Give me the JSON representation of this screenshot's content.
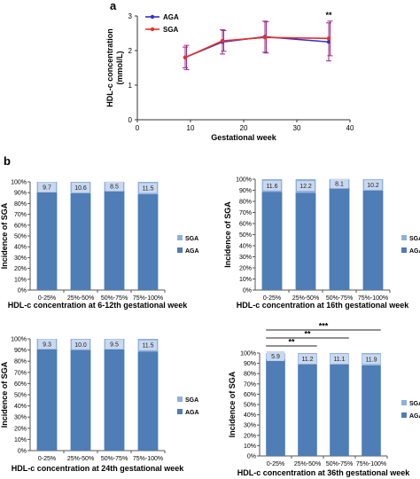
{
  "panel_labels": {
    "a": "a",
    "b": "b"
  },
  "colors": {
    "aga_line": "#3232c8",
    "sga_line": "#e8302a",
    "errbar": "#9a2a8c",
    "aga_bar": "#4f7db5",
    "sga_bar": "#8fb0dc",
    "label_box": "#c8d8ee"
  },
  "chart_data": [
    {
      "id": "a",
      "type": "line",
      "xlabel": "Gestational  week",
      "ylabel": "HDL-c concentration (mmol/L)",
      "ylabel_lines": [
        "HDL-c concentration",
        "(mmol/L)"
      ],
      "xlim": [
        0,
        40
      ],
      "ylim": [
        0,
        3
      ],
      "xticks": [
        0,
        10,
        20,
        30,
        40
      ],
      "yticks": [
        0,
        1,
        2,
        3
      ],
      "legend_position": "top-left",
      "series": [
        {
          "name": "AGA",
          "color": "#3232c8",
          "x": [
            9,
            16,
            24,
            36
          ],
          "y": [
            1.8,
            2.25,
            2.4,
            2.25
          ],
          "err": [
            0.3,
            0.35,
            0.45,
            0.55
          ]
        },
        {
          "name": "SGA",
          "color": "#e8302a",
          "x": [
            9,
            16,
            24,
            36
          ],
          "y": [
            1.8,
            2.28,
            2.38,
            2.35
          ],
          "err": [
            0.35,
            0.3,
            0.45,
            0.5
          ]
        }
      ],
      "annotations": [
        {
          "x": 36,
          "text": "**"
        }
      ]
    },
    {
      "id": "b1",
      "type": "bar",
      "stacked": true,
      "categories": [
        "0-25%",
        "25%-50%",
        "50%-75%",
        "75%-100%"
      ],
      "xlabel": "HDL-c  concentration at 6-12th gestational week",
      "ylabel": "Incidence of SGA",
      "yticks": [
        "0%",
        "10%",
        "20%",
        "30%",
        "40%",
        "50%",
        "60%",
        "70%",
        "80%",
        "90%",
        "100%"
      ],
      "series": [
        {
          "name": "AGA",
          "values": [
            90.3,
            89.4,
            91.5,
            88.5
          ]
        },
        {
          "name": "SGA",
          "values": [
            9.7,
            10.6,
            8.5,
            11.5
          ]
        }
      ],
      "data_labels": [
        "9.7",
        "10.6",
        "8.5",
        "11.5"
      ],
      "legend": [
        "SGA",
        "AGA"
      ]
    },
    {
      "id": "b2",
      "type": "bar",
      "stacked": true,
      "categories": [
        "0-25%",
        "25%-50%",
        "50%-75%",
        "75%-100%"
      ],
      "xlabel": "HDL-c concentration at 16th gestational week",
      "ylabel": "Incidence of SGA",
      "yticks": [
        "0%",
        "10%",
        "20%",
        "30%",
        "40%",
        "50%",
        "60%",
        "70%",
        "80%",
        "90%",
        "100%"
      ],
      "series": [
        {
          "name": "AGA",
          "values": [
            88.4,
            87.8,
            91.9,
            89.8
          ]
        },
        {
          "name": "SGA",
          "values": [
            11.6,
            12.2,
            8.1,
            10.2
          ]
        }
      ],
      "data_labels": [
        "11.6",
        "12.2",
        "8.1",
        "10.2"
      ],
      "legend": [
        "SGA",
        "AGA"
      ]
    },
    {
      "id": "b3",
      "type": "bar",
      "stacked": true,
      "categories": [
        "0-25%",
        "25%-50%",
        "50%-75%",
        "75%-100%"
      ],
      "xlabel": "HDL-c concentration at 24th gestational week",
      "ylabel": "Incidence of SGA",
      "yticks": [
        "0%",
        "10%",
        "20%",
        "30%",
        "40%",
        "50%",
        "60%",
        "70%",
        "80%",
        "90%",
        "100%"
      ],
      "series": [
        {
          "name": "AGA",
          "values": [
            90.7,
            90.0,
            90.5,
            88.5
          ]
        },
        {
          "name": "SGA",
          "values": [
            9.3,
            10.0,
            9.5,
            11.5
          ]
        }
      ],
      "data_labels": [
        "9.3",
        "10.0",
        "9.5",
        "11.5"
      ],
      "legend": [
        "SGA",
        "AGA"
      ]
    },
    {
      "id": "b4",
      "type": "bar",
      "stacked": true,
      "categories": [
        "0-25%",
        "25%-50%",
        "50%-75%",
        "75%-100%"
      ],
      "xlabel": "HDL-c concentration at 36th gestational week",
      "ylabel": "Incidence of SGA",
      "yticks": [
        "0%",
        "10%",
        "20%",
        "30%",
        "40%",
        "50%",
        "60%",
        "70%",
        "80%",
        "90%",
        "100%"
      ],
      "series": [
        {
          "name": "AGA",
          "values": [
            94.1,
            88.8,
            88.9,
            88.1
          ]
        },
        {
          "name": "SGA",
          "values": [
            5.9,
            11.2,
            11.1,
            11.9
          ]
        }
      ],
      "data_labels": [
        "5.9",
        "11.2",
        "11.1",
        "11.9"
      ],
      "legend": [
        "SGA",
        "AGA"
      ],
      "significance": [
        {
          "from": 0,
          "to": 1,
          "text": "**"
        },
        {
          "from": 0,
          "to": 2,
          "text": "**"
        },
        {
          "from": 0,
          "to": 3,
          "text": "***"
        }
      ]
    }
  ]
}
